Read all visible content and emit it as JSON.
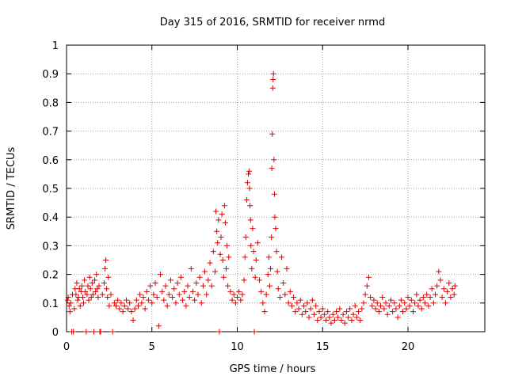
{
  "chart_data": {
    "type": "scatter",
    "title": "Day 315 of 2016, SRMTID for receiver nrmd",
    "xlabel": "GPS time / hours",
    "ylabel": "SRMTID / TECUs",
    "xlim": [
      0,
      24.5
    ],
    "ylim": [
      0,
      1
    ],
    "xticks": [
      0,
      5,
      10,
      15,
      20
    ],
    "xtick_labels": [
      "0",
      "5",
      "10",
      "15",
      "20"
    ],
    "yticks": [
      0,
      0.1,
      0.2,
      0.3,
      0.4,
      0.5,
      0.6,
      0.7,
      0.8,
      0.9,
      1
    ],
    "ytick_labels": [
      "0",
      "0.1",
      "0.2",
      "0.3",
      "0.4",
      "0.5",
      "0.6",
      "0.7",
      "0.8",
      "0.9",
      "1"
    ],
    "grid": true,
    "marker": "plus",
    "color": "#e00000",
    "series": [
      {
        "name": "SRMTID nrmd",
        "points": [
          [
            0.05,
            0.11
          ],
          [
            0.1,
            0.12
          ],
          [
            0.15,
            0.09
          ],
          [
            0.2,
            0.07
          ],
          [
            0.25,
            0.1
          ],
          [
            0.3,
            0.0
          ],
          [
            0.35,
            0.13
          ],
          [
            0.4,
            0.0
          ],
          [
            0.45,
            0.08
          ],
          [
            0.5,
            0.15
          ],
          [
            0.55,
            0.13
          ],
          [
            0.6,
            0.17
          ],
          [
            0.65,
            0.11
          ],
          [
            0.7,
            0.12
          ],
          [
            0.75,
            0.15
          ],
          [
            0.8,
            0.09
          ],
          [
            0.85,
            0.14
          ],
          [
            0.9,
            0.16
          ],
          [
            0.95,
            0.12
          ],
          [
            1.0,
            0.1
          ],
          [
            1.05,
            0.18
          ],
          [
            1.1,
            0.14
          ],
          [
            1.15,
            0.0
          ],
          [
            1.2,
            0.13
          ],
          [
            1.25,
            0.16
          ],
          [
            1.3,
            0.11
          ],
          [
            1.35,
            0.19
          ],
          [
            1.4,
            0.15
          ],
          [
            1.45,
            0.12
          ],
          [
            1.5,
            0.17
          ],
          [
            1.55,
            0.13
          ],
          [
            1.6,
            0.0
          ],
          [
            1.65,
            0.18
          ],
          [
            1.7,
            0.14
          ],
          [
            1.75,
            0.2
          ],
          [
            1.8,
            0.15
          ],
          [
            1.85,
            0.12
          ],
          [
            1.9,
            0.16
          ],
          [
            1.95,
            0.0
          ],
          [
            2.0,
            0.0
          ],
          [
            2.1,
            0.13
          ],
          [
            2.2,
            0.17
          ],
          [
            2.25,
            0.22
          ],
          [
            2.3,
            0.25
          ],
          [
            2.35,
            0.15
          ],
          [
            2.4,
            0.12
          ],
          [
            2.45,
            0.19
          ],
          [
            2.5,
            0.09
          ],
          [
            2.6,
            0.13
          ],
          [
            2.7,
            0.0
          ],
          [
            2.8,
            0.1
          ],
          [
            2.9,
            0.09
          ],
          [
            3.0,
            0.11
          ],
          [
            3.1,
            0.08
          ],
          [
            3.2,
            0.1
          ],
          [
            3.3,
            0.07
          ],
          [
            3.4,
            0.09
          ],
          [
            3.5,
            0.11
          ],
          [
            3.6,
            0.08
          ],
          [
            3.7,
            0.1
          ],
          [
            3.8,
            0.07
          ],
          [
            3.9,
            0.04
          ],
          [
            4.0,
            0.08
          ],
          [
            4.1,
            0.11
          ],
          [
            4.2,
            0.09
          ],
          [
            4.3,
            0.13
          ],
          [
            4.4,
            0.1
          ],
          [
            4.5,
            0.12
          ],
          [
            4.6,
            0.08
          ],
          [
            4.7,
            0.14
          ],
          [
            4.8,
            0.11
          ],
          [
            4.9,
            0.16
          ],
          [
            5.0,
            0.1
          ],
          [
            5.1,
            0.13
          ],
          [
            5.2,
            0.17
          ],
          [
            5.3,
            0.12
          ],
          [
            5.4,
            0.02
          ],
          [
            5.5,
            0.2
          ],
          [
            5.6,
            0.14
          ],
          [
            5.7,
            0.11
          ],
          [
            5.8,
            0.16
          ],
          [
            5.9,
            0.09
          ],
          [
            6.0,
            0.13
          ],
          [
            6.1,
            0.18
          ],
          [
            6.2,
            0.12
          ],
          [
            6.3,
            0.15
          ],
          [
            6.4,
            0.1
          ],
          [
            6.5,
            0.17
          ],
          [
            6.6,
            0.13
          ],
          [
            6.7,
            0.19
          ],
          [
            6.8,
            0.11
          ],
          [
            6.9,
            0.14
          ],
          [
            7.0,
            0.09
          ],
          [
            7.1,
            0.16
          ],
          [
            7.2,
            0.12
          ],
          [
            7.3,
            0.22
          ],
          [
            7.4,
            0.14
          ],
          [
            7.5,
            0.11
          ],
          [
            7.6,
            0.17
          ],
          [
            7.7,
            0.13
          ],
          [
            7.8,
            0.19
          ],
          [
            7.9,
            0.1
          ],
          [
            8.0,
            0.16
          ],
          [
            8.1,
            0.21
          ],
          [
            8.2,
            0.13
          ],
          [
            8.3,
            0.18
          ],
          [
            8.4,
            0.24
          ],
          [
            8.5,
            0.16
          ],
          [
            8.6,
            0.28
          ],
          [
            8.7,
            0.21
          ],
          [
            8.75,
            0.42
          ],
          [
            8.8,
            0.35
          ],
          [
            8.85,
            0.31
          ],
          [
            8.9,
            0.39
          ],
          [
            8.95,
            0.0
          ],
          [
            9.0,
            0.27
          ],
          [
            9.05,
            0.33
          ],
          [
            9.1,
            0.41
          ],
          [
            9.15,
            0.25
          ],
          [
            9.2,
            0.19
          ],
          [
            9.25,
            0.44
          ],
          [
            9.3,
            0.38
          ],
          [
            9.35,
            0.22
          ],
          [
            9.4,
            0.3
          ],
          [
            9.45,
            0.16
          ],
          [
            9.5,
            0.26
          ],
          [
            9.6,
            0.14
          ],
          [
            9.7,
            0.11
          ],
          [
            9.8,
            0.13
          ],
          [
            9.9,
            0.1
          ],
          [
            10.0,
            0.12
          ],
          [
            10.1,
            0.14
          ],
          [
            10.2,
            0.11
          ],
          [
            10.3,
            0.13
          ],
          [
            10.4,
            0.18
          ],
          [
            10.45,
            0.26
          ],
          [
            10.5,
            0.33
          ],
          [
            10.55,
            0.46
          ],
          [
            10.6,
            0.52
          ],
          [
            10.65,
            0.55
          ],
          [
            10.7,
            0.56
          ],
          [
            10.72,
            0.5
          ],
          [
            10.75,
            0.44
          ],
          [
            10.78,
            0.39
          ],
          [
            10.8,
            0.3
          ],
          [
            10.85,
            0.22
          ],
          [
            10.9,
            0.36
          ],
          [
            10.95,
            0.28
          ],
          [
            11.0,
            0.0
          ],
          [
            11.05,
            0.19
          ],
          [
            11.1,
            0.25
          ],
          [
            11.2,
            0.31
          ],
          [
            11.3,
            0.18
          ],
          [
            11.4,
            0.14
          ],
          [
            11.5,
            0.1
          ],
          [
            11.6,
            0.07
          ],
          [
            11.7,
            0.13
          ],
          [
            11.8,
            0.2
          ],
          [
            11.85,
            0.26
          ],
          [
            11.9,
            0.16
          ],
          [
            11.95,
            0.22
          ],
          [
            12.0,
            0.33
          ],
          [
            12.02,
            0.57
          ],
          [
            12.05,
            0.69
          ],
          [
            12.08,
            0.85
          ],
          [
            12.1,
            0.88
          ],
          [
            12.12,
            0.9
          ],
          [
            12.15,
            0.6
          ],
          [
            12.18,
            0.48
          ],
          [
            12.2,
            0.4
          ],
          [
            12.25,
            0.36
          ],
          [
            12.3,
            0.28
          ],
          [
            12.35,
            0.21
          ],
          [
            12.4,
            0.15
          ],
          [
            12.5,
            0.12
          ],
          [
            12.6,
            0.26
          ],
          [
            12.7,
            0.17
          ],
          [
            12.8,
            0.13
          ],
          [
            12.9,
            0.22
          ],
          [
            13.0,
            0.1
          ],
          [
            13.1,
            0.14
          ],
          [
            13.2,
            0.09
          ],
          [
            13.3,
            0.12
          ],
          [
            13.4,
            0.07
          ],
          [
            13.5,
            0.1
          ],
          [
            13.6,
            0.08
          ],
          [
            13.7,
            0.11
          ],
          [
            13.8,
            0.06
          ],
          [
            13.9,
            0.09
          ],
          [
            14.0,
            0.07
          ],
          [
            14.1,
            0.1
          ],
          [
            14.2,
            0.05
          ],
          [
            14.3,
            0.08
          ],
          [
            14.4,
            0.11
          ],
          [
            14.5,
            0.06
          ],
          [
            14.6,
            0.09
          ],
          [
            14.7,
            0.04
          ],
          [
            14.8,
            0.07
          ],
          [
            14.9,
            0.05
          ],
          [
            15.0,
            0.08
          ],
          [
            15.1,
            0.06
          ],
          [
            15.2,
            0.04
          ],
          [
            15.3,
            0.07
          ],
          [
            15.4,
            0.05
          ],
          [
            15.5,
            0.03
          ],
          [
            15.6,
            0.06
          ],
          [
            15.7,
            0.04
          ],
          [
            15.8,
            0.07
          ],
          [
            15.9,
            0.05
          ],
          [
            16.0,
            0.08
          ],
          [
            16.1,
            0.04
          ],
          [
            16.2,
            0.06
          ],
          [
            16.3,
            0.03
          ],
          [
            16.4,
            0.07
          ],
          [
            16.5,
            0.05
          ],
          [
            16.6,
            0.08
          ],
          [
            16.7,
            0.04
          ],
          [
            16.8,
            0.06
          ],
          [
            16.9,
            0.09
          ],
          [
            17.0,
            0.05
          ],
          [
            17.1,
            0.07
          ],
          [
            17.2,
            0.04
          ],
          [
            17.3,
            0.08
          ],
          [
            17.4,
            0.1
          ],
          [
            17.5,
            0.13
          ],
          [
            17.6,
            0.16
          ],
          [
            17.7,
            0.19
          ],
          [
            17.8,
            0.12
          ],
          [
            17.9,
            0.09
          ],
          [
            18.0,
            0.11
          ],
          [
            18.1,
            0.08
          ],
          [
            18.2,
            0.1
          ],
          [
            18.3,
            0.07
          ],
          [
            18.4,
            0.09
          ],
          [
            18.5,
            0.12
          ],
          [
            18.6,
            0.08
          ],
          [
            18.7,
            0.1
          ],
          [
            18.8,
            0.06
          ],
          [
            18.9,
            0.09
          ],
          [
            19.0,
            0.11
          ],
          [
            19.1,
            0.07
          ],
          [
            19.2,
            0.1
          ],
          [
            19.3,
            0.08
          ],
          [
            19.4,
            0.05
          ],
          [
            19.5,
            0.09
          ],
          [
            19.6,
            0.11
          ],
          [
            19.7,
            0.07
          ],
          [
            19.8,
            0.1
          ],
          [
            19.9,
            0.08
          ],
          [
            20.0,
            0.12
          ],
          [
            20.1,
            0.09
          ],
          [
            20.2,
            0.11
          ],
          [
            20.3,
            0.07
          ],
          [
            20.4,
            0.1
          ],
          [
            20.5,
            0.13
          ],
          [
            20.6,
            0.09
          ],
          [
            20.7,
            0.11
          ],
          [
            20.8,
            0.08
          ],
          [
            20.9,
            0.12
          ],
          [
            21.0,
            0.1
          ],
          [
            21.1,
            0.13
          ],
          [
            21.2,
            0.09
          ],
          [
            21.3,
            0.12
          ],
          [
            21.4,
            0.15
          ],
          [
            21.5,
            0.1
          ],
          [
            21.6,
            0.13
          ],
          [
            21.7,
            0.16
          ],
          [
            21.8,
            0.21
          ],
          [
            21.9,
            0.18
          ],
          [
            22.0,
            0.12
          ],
          [
            22.1,
            0.15
          ],
          [
            22.2,
            0.1
          ],
          [
            22.3,
            0.14
          ],
          [
            22.4,
            0.17
          ],
          [
            22.5,
            0.12
          ],
          [
            22.6,
            0.15
          ],
          [
            22.7,
            0.13
          ],
          [
            22.75,
            0.16
          ]
        ]
      }
    ]
  }
}
